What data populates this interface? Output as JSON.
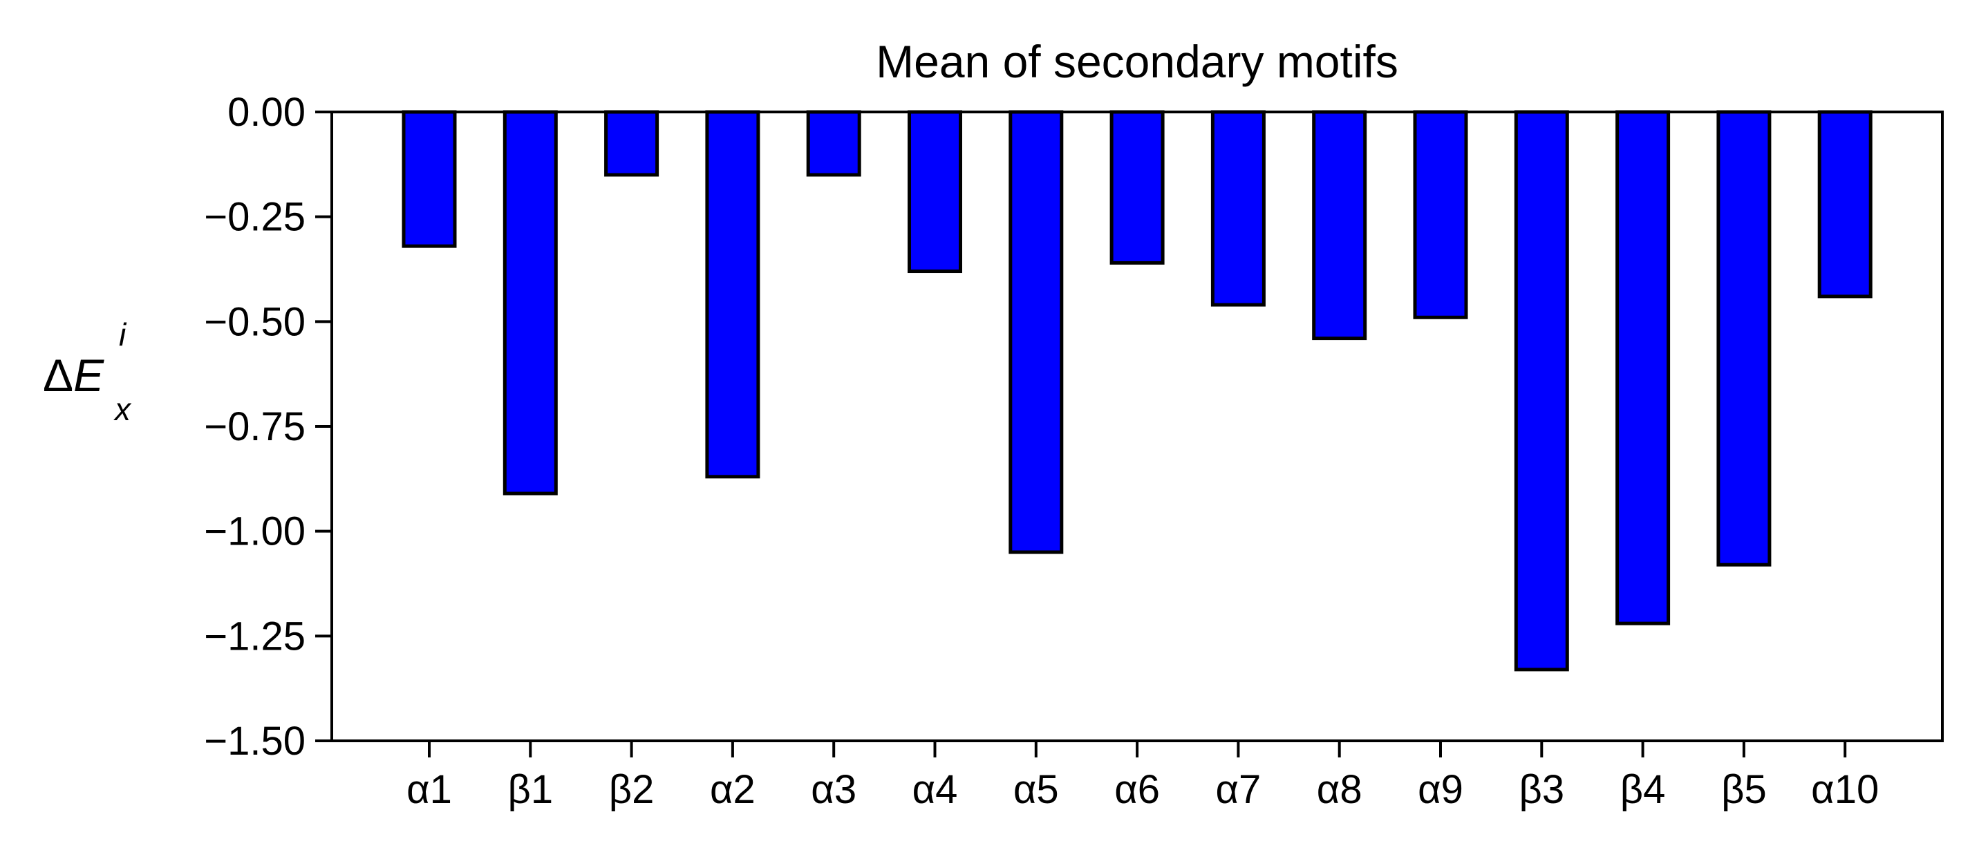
{
  "chart_data": {
    "type": "bar",
    "title": "Mean of secondary motifs",
    "ylabel": {
      "delta": "Δ",
      "symbol": "E",
      "subscript": "x",
      "superscript": "i"
    },
    "xlabel": "",
    "categories": [
      "α1",
      "β1",
      "β2",
      "α2",
      "α3",
      "α4",
      "α5",
      "α6",
      "α7",
      "α8",
      "α9",
      "β3",
      "β4",
      "β5",
      "α10"
    ],
    "values": [
      -0.32,
      -0.91,
      -0.15,
      -0.87,
      -0.15,
      -0.38,
      -1.05,
      -0.36,
      -0.46,
      -0.54,
      -0.49,
      -1.33,
      -1.22,
      -1.08,
      -0.44
    ],
    "ylim": [
      -1.5,
      0.0
    ],
    "yticks": [
      0.0,
      -0.25,
      -0.5,
      -0.75,
      -1.0,
      -1.25,
      -1.5
    ],
    "ytick_labels": [
      "0.00",
      "−0.25",
      "−0.50",
      "−0.75",
      "−1.00",
      "−1.25",
      "−1.50"
    ],
    "grid": false,
    "bar_color": "#0000ff",
    "edge_color": "#000000"
  }
}
